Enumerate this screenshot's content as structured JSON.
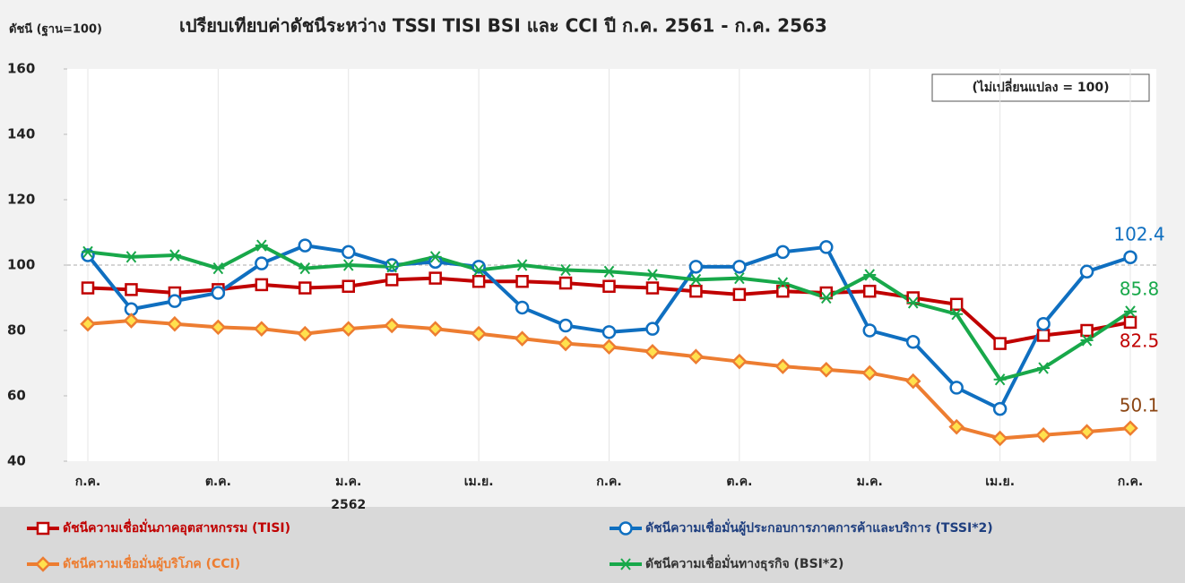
{
  "chart_data": {
    "type": "line",
    "title": "เปรียบเทียบค่าดัชนีระหว่าง TSSI TISI BSI และ CCI ปี ก.ค. 2561 - ก.ค. 2563",
    "y_axis_label": "ดัชนี (ฐาน=100)",
    "categories": [
      "ก.ค.",
      null,
      null,
      "ต.ค.",
      null,
      null,
      "ม.ค.",
      null,
      null,
      "เม.ย.",
      null,
      null,
      "ก.ค.",
      null,
      null,
      "ต.ค.",
      null,
      null,
      "ม.ค.",
      null,
      null,
      "เม.ย.",
      null,
      null,
      "ก.ค."
    ],
    "year_annotation": "2562",
    "ylim": [
      40,
      160
    ],
    "yticks": [
      40,
      60,
      80,
      100,
      120,
      140,
      160
    ],
    "reference_line": {
      "value": 100,
      "label": "(ไม่เปลี่ยนแปลง = 100)"
    },
    "series": [
      {
        "name": "ดัชนีความเชื่อมั่นภาคอุตสาหกรรม (TISI)",
        "color": "#c00000",
        "marker": "square",
        "legend_color": "#c00000",
        "label_color": "#c00000",
        "values": [
          93,
          92.5,
          91.5,
          92.5,
          94,
          93,
          93.5,
          95.5,
          96,
          95,
          95,
          94.5,
          93.5,
          93,
          92,
          91,
          92,
          91.5,
          92,
          90,
          88,
          76,
          78.5,
          80,
          82.5
        ]
      },
      {
        "name": "ดัชนีความเชื่อมั่นผู้ประกอบการภาคการค้าและบริการ (TSSI*2)",
        "color": "#0f6fc0",
        "marker": "circle",
        "legend_color": "#1f3f7f",
        "label_color": "#0f6fc0",
        "values": [
          103,
          86.5,
          89,
          91.5,
          100.5,
          106,
          104,
          100,
          101,
          99.5,
          87,
          81.5,
          79.5,
          80.5,
          99.5,
          99.5,
          104,
          105.5,
          80,
          76.5,
          62.5,
          56,
          82,
          98,
          102.4
        ]
      },
      {
        "name": "ดัชนีความเชื่อมั่นผู้บริโภค (CCI)",
        "color": "#ed7d31",
        "marker": "diamond",
        "legend_color": "#ed7d31",
        "label_color": "#8b4513",
        "values": [
          82,
          83,
          82,
          81,
          80.5,
          79,
          80.5,
          81.5,
          80.5,
          79,
          77.5,
          76,
          75,
          73.5,
          72,
          70.5,
          69,
          68,
          67,
          64.5,
          50.5,
          47,
          48,
          49,
          50.1
        ]
      },
      {
        "name": "ดัชนีความเชื่อมั่นทางธุรกิจ (BSI*2)",
        "color": "#18a84a",
        "marker": "asterisk",
        "legend_color": "#333333",
        "label_color": "#18a84a",
        "values": [
          104,
          102.5,
          103,
          99,
          106,
          99,
          100,
          99.5,
          102.5,
          98.5,
          100,
          98.5,
          98,
          97,
          95.5,
          96,
          94.5,
          90,
          97,
          88.5,
          85,
          65,
          68.5,
          77,
          85.8
        ]
      }
    ]
  }
}
